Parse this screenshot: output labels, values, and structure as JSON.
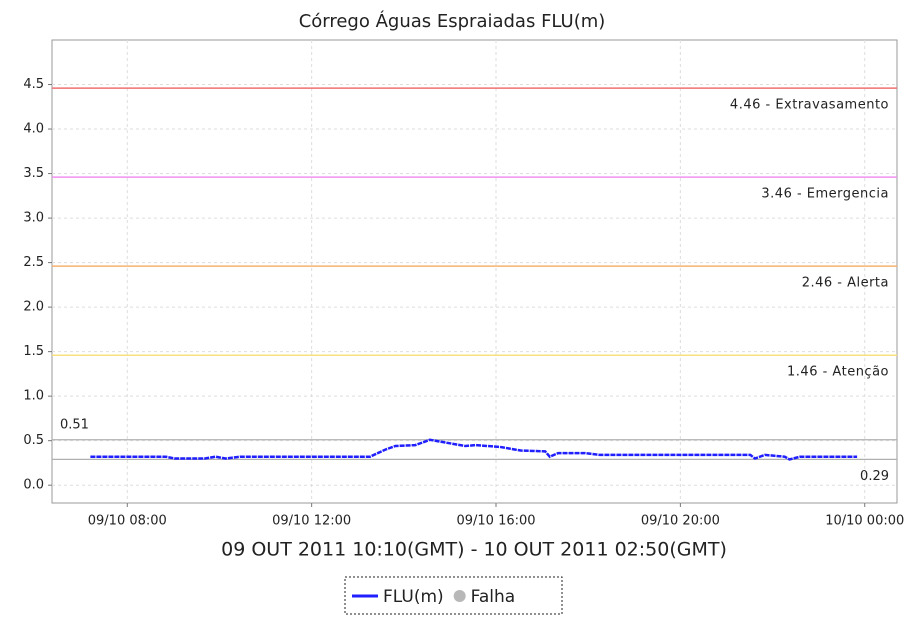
{
  "chart_data": {
    "type": "line",
    "title": "Córrego Águas Espraiadas FLU(m)",
    "x_label": "09 OUT 2011 10:10(GMT) - 10 OUT 2011 02:50(GMT)",
    "x": [
      "09/10 07:12",
      "09/10 08:50",
      "09/10 09:02",
      "09/10 09:41",
      "09/10 09:55",
      "09/10 10:08",
      "09/10 10:27",
      "09/10 13:16",
      "09/10 13:36",
      "09/10 13:49",
      "09/10 14:15",
      "09/10 14:34",
      "09/10 14:54",
      "09/10 15:20",
      "09/10 15:33",
      "09/10 16:05",
      "09/10 16:32",
      "09/10 17:04",
      "09/10 17:10",
      "09/10 17:21",
      "09/10 17:56",
      "09/10 18:15",
      "09/10 21:31",
      "09/10 21:37",
      "09/10 21:50",
      "09/10 22:16",
      "09/10 22:22",
      "09/10 22:36",
      "09/10 23:50"
    ],
    "series": [
      {
        "name": "FLU(m)",
        "color": "#1f1fff",
        "values": [
          0.32,
          0.32,
          0.3,
          0.3,
          0.32,
          0.3,
          0.32,
          0.32,
          0.4,
          0.44,
          0.45,
          0.51,
          0.48,
          0.44,
          0.45,
          0.43,
          0.39,
          0.38,
          0.32,
          0.36,
          0.36,
          0.34,
          0.34,
          0.3,
          0.34,
          0.32,
          0.29,
          0.32,
          0.32
        ]
      }
    ],
    "legend": [
      {
        "name": "FLU(m)",
        "color": "#1f1fff",
        "marker": "line"
      },
      {
        "name": "Falha",
        "color": "#b8b8b8",
        "marker": "dot"
      }
    ],
    "xlim": [
      "09/10 06:22",
      "10/10 00:42"
    ],
    "xticks": [
      "09/10 08:00",
      "09/10 12:00",
      "09/10 16:00",
      "09/10 20:00",
      "10/10 00:00"
    ],
    "ylim": [
      -0.2,
      5.0
    ],
    "yticks": [
      {
        "value": 0,
        "label": "0.0"
      },
      0.5,
      {
        "value": 1,
        "label": "1.0"
      },
      1.5,
      {
        "value": 2,
        "label": "2.0"
      },
      2.5,
      {
        "value": 3,
        "label": "3.0"
      },
      3.5,
      {
        "value": 4,
        "label": "4.0"
      },
      4.5
    ],
    "grid": true,
    "thresholds": [
      {
        "value": 4.46,
        "label": "4.46 - Extravasamento",
        "color": "#f07070"
      },
      {
        "value": 3.46,
        "label": "3.46 - Emergencia",
        "color": "#f090f0"
      },
      {
        "value": 2.46,
        "label": "2.46 - Alerta",
        "color": "#f8b070"
      },
      {
        "value": 1.46,
        "label": "1.46 - Atenção",
        "color": "#f8e080"
      }
    ],
    "max_line": {
      "value": 0.51,
      "color": "#b0b0b0"
    },
    "min_line": {
      "value": 0.29,
      "color": "#b0b0b0"
    }
  }
}
